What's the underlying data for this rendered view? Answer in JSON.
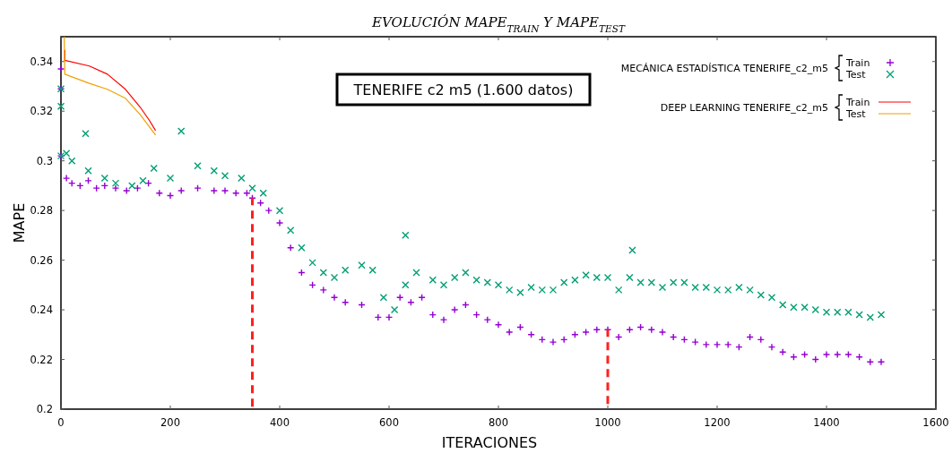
{
  "chart_data": {
    "type": "scatter",
    "title": "EVOLUCIÓN MAPE$_{TRAIN}$ Y MAPE$_{TEST}$",
    "xlabel": "ITERACIONES",
    "ylabel": "MAPE",
    "annotations": [
      "TENERIFE c2 m5 (1.600 datos)",
      "MECÁNICA ESTADÍSTICA TENERIFE_c2_m5",
      "DEEP LEARNING TENERIFE_c2_m5"
    ],
    "xlim": [
      0,
      1600
    ],
    "xticks": [
      0,
      200,
      400,
      600,
      800,
      1000,
      1200,
      1400,
      1600
    ],
    "ylim": [
      0.2,
      0.35
    ],
    "yticks": [
      0.2,
      0.22,
      0.24,
      0.26,
      0.28,
      0.3,
      0.32,
      0.34
    ],
    "grid": false,
    "legend": "top right",
    "series": [
      {
        "name": "Train",
        "marker": "cross",
        "color": "#9400d3",
        "x": [
          0,
          0,
          0,
          10,
          20,
          35,
          50,
          65,
          80,
          100,
          120,
          140,
          160,
          180,
          200,
          220,
          250,
          280,
          300,
          320,
          340,
          350,
          365,
          380,
          400,
          420,
          440,
          460,
          480,
          500,
          520,
          550,
          580,
          600,
          620,
          640,
          660,
          680,
          700,
          720,
          740,
          760,
          780,
          800,
          820,
          840,
          860,
          880,
          900,
          920,
          940,
          960,
          980,
          1000,
          1020,
          1040,
          1060,
          1080,
          1100,
          1120,
          1140,
          1160,
          1180,
          1200,
          1220,
          1240,
          1260,
          1280,
          1300,
          1320,
          1340,
          1360,
          1380,
          1400,
          1420,
          1440,
          1460,
          1480,
          1500
        ],
        "values": [
          0.337,
          0.329,
          0.302,
          0.293,
          0.291,
          0.29,
          0.292,
          0.289,
          0.29,
          0.289,
          0.288,
          0.289,
          0.291,
          0.287,
          0.286,
          0.288,
          0.289,
          0.288,
          0.288,
          0.287,
          0.287,
          0.285,
          0.283,
          0.28,
          0.275,
          0.265,
          0.255,
          0.25,
          0.248,
          0.245,
          0.243,
          0.242,
          0.237,
          0.237,
          0.245,
          0.243,
          0.245,
          0.238,
          0.236,
          0.24,
          0.242,
          0.238,
          0.236,
          0.234,
          0.231,
          0.233,
          0.23,
          0.228,
          0.227,
          0.228,
          0.23,
          0.231,
          0.232,
          0.232,
          0.229,
          0.232,
          0.233,
          0.232,
          0.231,
          0.229,
          0.228,
          0.227,
          0.226,
          0.226,
          0.226,
          0.225,
          0.229,
          0.228,
          0.225,
          0.223,
          0.221,
          0.222,
          0.22,
          0.222,
          0.222,
          0.222,
          0.221,
          0.219,
          0.219
        ]
      },
      {
        "name": "Test",
        "marker": "x",
        "color": "#009e73",
        "x": [
          0,
          0,
          0,
          10,
          20,
          45,
          50,
          80,
          100,
          130,
          150,
          170,
          200,
          220,
          250,
          280,
          300,
          330,
          350,
          370,
          400,
          420,
          440,
          460,
          480,
          500,
          520,
          550,
          570,
          590,
          610,
          630,
          630,
          650,
          680,
          700,
          720,
          740,
          760,
          780,
          800,
          820,
          840,
          860,
          880,
          900,
          920,
          940,
          960,
          980,
          1000,
          1020,
          1040,
          1045,
          1060,
          1080,
          1100,
          1120,
          1140,
          1160,
          1180,
          1200,
          1220,
          1240,
          1260,
          1280,
          1300,
          1320,
          1340,
          1360,
          1380,
          1400,
          1420,
          1440,
          1460,
          1480,
          1500
        ],
        "values": [
          0.329,
          0.322,
          0.302,
          0.303,
          0.3,
          0.311,
          0.296,
          0.293,
          0.291,
          0.29,
          0.292,
          0.297,
          0.293,
          0.312,
          0.298,
          0.296,
          0.294,
          0.293,
          0.289,
          0.287,
          0.28,
          0.272,
          0.265,
          0.259,
          0.255,
          0.253,
          0.256,
          0.258,
          0.256,
          0.245,
          0.24,
          0.27,
          0.25,
          0.255,
          0.252,
          0.25,
          0.253,
          0.255,
          0.252,
          0.251,
          0.25,
          0.248,
          0.247,
          0.249,
          0.248,
          0.248,
          0.251,
          0.252,
          0.254,
          0.253,
          0.253,
          0.248,
          0.253,
          0.264,
          0.251,
          0.251,
          0.249,
          0.251,
          0.251,
          0.249,
          0.249,
          0.248,
          0.248,
          0.249,
          0.248,
          0.246,
          0.245,
          0.242,
          0.241,
          0.241,
          0.24,
          0.239,
          0.239,
          0.239,
          0.238,
          0.237,
          0.238
        ]
      },
      {
        "name": "Train",
        "type": "line",
        "color": "#ff0000",
        "x": [
          7,
          7,
          52,
          85,
          118,
          145,
          162,
          173
        ],
        "values": [
          0.3447,
          0.3405,
          0.3382,
          0.3349,
          0.3288,
          0.3216,
          0.3162,
          0.3122
        ]
      },
      {
        "name": "Test",
        "type": "line",
        "color": "#f0a000",
        "x": [
          6,
          7,
          52,
          85,
          118,
          145,
          173
        ],
        "values": [
          0.35,
          0.3349,
          0.3312,
          0.3288,
          0.3252,
          0.3186,
          0.3104
        ]
      },
      {
        "type": "line",
        "line_style": "dashed",
        "color": "#ff2020",
        "x": [
          350,
          350
        ],
        "values": [
          0.2,
          0.285
        ]
      },
      {
        "type": "line",
        "line_style": "dashed",
        "color": "#ff2020",
        "x": [
          1000,
          1000
        ],
        "values": [
          0.2,
          0.232
        ]
      }
    ]
  }
}
